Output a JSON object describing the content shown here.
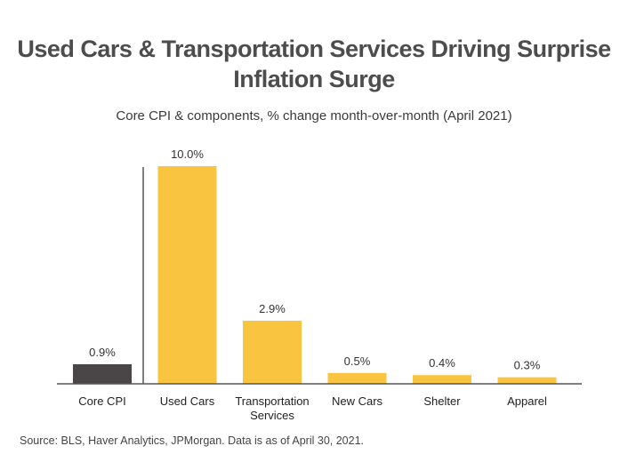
{
  "chart_data": {
    "type": "bar",
    "title": "Used Cars & Transportation Services Driving Surprise Inflation Surge",
    "subtitle": "Core CPI & components, % change month-over-month (April 2021)",
    "categories": [
      "Core CPI",
      "Used Cars",
      "Transportation Services",
      "New Cars",
      "Shelter",
      "Apparel"
    ],
    "category_lines": [
      [
        "Core CPI"
      ],
      [
        "Used Cars"
      ],
      [
        "Transportation",
        "Services"
      ],
      [
        "New Cars"
      ],
      [
        "Shelter"
      ],
      [
        "Apparel"
      ]
    ],
    "values": [
      0.9,
      10.0,
      2.9,
      0.5,
      0.4,
      0.3
    ],
    "data_labels": [
      "0.9%",
      "10.0%",
      "2.9%",
      "0.5%",
      "0.4%",
      "0.3%"
    ],
    "colors": [
      "#4a4546",
      "#f9c440",
      "#f9c440",
      "#f9c440",
      "#f9c440",
      "#f9c440"
    ],
    "ylim": [
      0,
      10
    ],
    "xlabel": "",
    "ylabel": "",
    "grid": false,
    "legend": "none"
  },
  "source": "Source: BLS, Haver Analytics, JPMorgan. Data is as of April 30, 2021."
}
